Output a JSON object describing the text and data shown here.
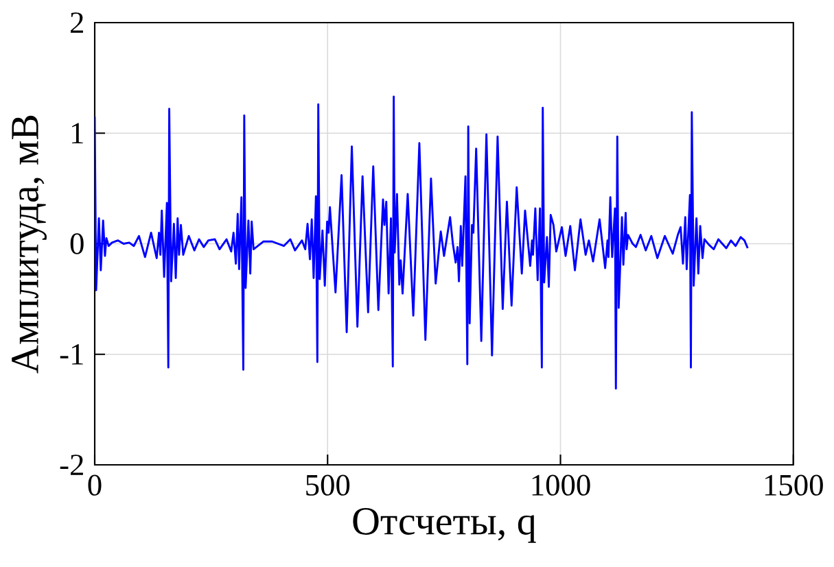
{
  "chart_data": {
    "type": "line",
    "xlabel": "Отсчеты, q",
    "ylabel": "Амплитуда, мВ",
    "xlim": [
      0,
      1500
    ],
    "ylim": [
      -2,
      2
    ],
    "xticks": [
      0,
      500,
      1000,
      1500
    ],
    "yticks": [
      -2,
      -1,
      0,
      1,
      2
    ],
    "grid": true,
    "series": [
      {
        "color": "#0000ff",
        "x": [
          0,
          3,
          9,
          13,
          18,
          22,
          25,
          30,
          37,
          50,
          62,
          74,
          84,
          95,
          108,
          121,
          133,
          138,
          141,
          144,
          149,
          155,
          158,
          160,
          164,
          170,
          174,
          178,
          181,
          185,
          190,
          202,
          214,
          224,
          234,
          244,
          258,
          268,
          283,
          293,
          298,
          303,
          307,
          310,
          315,
          319,
          321,
          324,
          330,
          334,
          337,
          341,
          362,
          381,
          406,
          420,
          430,
          445,
          452,
          457,
          462,
          466,
          470,
          475,
          478,
          480,
          483,
          489,
          494,
          499,
          502,
          505,
          517,
          530,
          541,
          552,
          564,
          575,
          587,
          598,
          609,
          619,
          622,
          626,
          631,
          636,
          640,
          642,
          644,
          649,
          654,
          657,
          661,
          672,
          684,
          697,
          710,
          722,
          732,
          743,
          750,
          763,
          769,
          775,
          779,
          782,
          786,
          789,
          796,
          800,
          802,
          805,
          810,
          813,
          819,
          830,
          841,
          853,
          865,
          876,
          885,
          895,
          906,
          917,
          924,
          935,
          939,
          941,
          946,
          951,
          956,
          960,
          962,
          965,
          971,
          975,
          979,
          985,
          991,
          1003,
          1011,
          1021,
          1031,
          1043,
          1054,
          1061,
          1070,
          1084,
          1096,
          1101,
          1103,
          1107,
          1111,
          1117,
          1119,
          1122,
          1125,
          1132,
          1135,
          1140,
          1142,
          1145,
          1155,
          1162,
          1172,
          1183,
          1195,
          1208,
          1224,
          1241,
          1252,
          1258,
          1263,
          1268,
          1271,
          1278,
          1280,
          1282,
          1286,
          1292,
          1296,
          1300,
          1305,
          1309,
          1319,
          1329,
          1339,
          1356,
          1366,
          1376,
          1387,
          1395,
          1402
        ],
        "values": [
          1.15,
          -0.42,
          0.23,
          -0.24,
          0.21,
          -0.11,
          0.05,
          -0.02,
          0.01,
          0.03,
          0.0,
          0.01,
          -0.02,
          0.07,
          -0.12,
          0.1,
          -0.13,
          0.1,
          -0.1,
          0.3,
          -0.3,
          0.37,
          -1.12,
          1.22,
          -0.34,
          0.18,
          -0.31,
          0.23,
          -0.1,
          0.17,
          -0.1,
          0.07,
          -0.06,
          0.04,
          -0.03,
          0.03,
          0.04,
          -0.05,
          0.04,
          -0.07,
          0.1,
          -0.18,
          0.27,
          -0.23,
          0.42,
          -1.14,
          1.16,
          -0.4,
          0.21,
          -0.27,
          0.2,
          -0.05,
          0.02,
          0.02,
          -0.02,
          0.04,
          -0.06,
          0.03,
          -0.05,
          0.18,
          -0.14,
          0.22,
          -0.31,
          0.43,
          -1.07,
          1.26,
          -0.32,
          0.12,
          -0.38,
          0.2,
          0.1,
          0.33,
          -0.44,
          0.62,
          -0.8,
          0.88,
          -0.75,
          0.61,
          -0.62,
          0.7,
          -0.6,
          0.4,
          0.17,
          0.38,
          -0.45,
          0.23,
          -1.11,
          1.33,
          -0.08,
          0.45,
          -0.37,
          -0.15,
          -0.45,
          0.45,
          -0.65,
          0.91,
          -0.87,
          0.59,
          -0.36,
          0.11,
          -0.11,
          0.24,
          0.0,
          -0.17,
          -0.03,
          -0.34,
          0.16,
          -0.2,
          0.61,
          -1.09,
          1.06,
          -0.72,
          0.17,
          0.1,
          0.86,
          -0.88,
          0.99,
          -1.01,
          0.97,
          -0.59,
          0.38,
          -0.56,
          0.51,
          -0.27,
          0.3,
          -0.2,
          0.03,
          -0.1,
          0.32,
          -0.33,
          0.32,
          -1.12,
          1.23,
          -0.35,
          0.06,
          -0.39,
          0.26,
          0.17,
          -0.07,
          0.15,
          -0.11,
          0.16,
          -0.24,
          0.22,
          -0.1,
          0.03,
          -0.16,
          0.22,
          -0.22,
          0.03,
          -0.12,
          0.42,
          -0.12,
          0.32,
          -1.31,
          0.97,
          -0.58,
          0.24,
          -0.19,
          0.28,
          -0.05,
          0.08,
          0.0,
          -0.03,
          0.08,
          -0.06,
          0.07,
          -0.13,
          0.07,
          -0.09,
          0.08,
          0.15,
          -0.18,
          0.24,
          -0.23,
          0.44,
          -1.12,
          1.19,
          -0.38,
          0.23,
          -0.27,
          0.16,
          -0.13,
          0.04,
          -0.01,
          -0.05,
          0.04,
          -0.04,
          0.03,
          -0.02,
          0.06,
          0.03,
          -0.04
        ]
      }
    ]
  }
}
